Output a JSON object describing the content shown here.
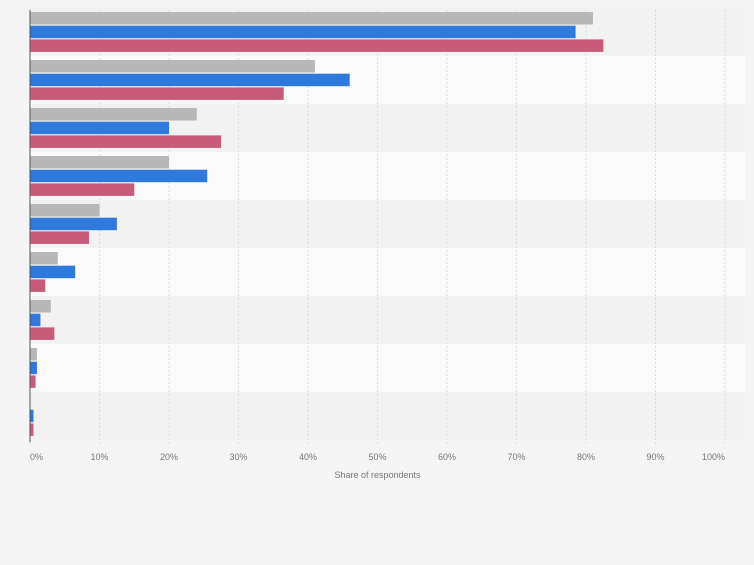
{
  "chart_data": {
    "type": "bar",
    "orientation": "horizontal",
    "categories": [
      "",
      "",
      "",
      "",
      "",
      "",
      "",
      "",
      ""
    ],
    "series": [
      {
        "color": "#b7b7b7",
        "values": [
          81,
          41,
          24,
          20,
          10,
          4,
          3,
          1,
          0
        ]
      },
      {
        "color": "#2f78dd",
        "values": [
          78.5,
          46,
          20,
          25.5,
          12.5,
          6.5,
          1.5,
          1,
          0.5
        ]
      },
      {
        "color": "#c95a7a",
        "values": [
          82.5,
          36.5,
          27.5,
          15,
          8.5,
          2.2,
          3.5,
          0.8,
          0.5
        ]
      }
    ],
    "xlabel": "Share of respondents",
    "xlim": [
      0,
      100
    ],
    "xticks": [
      "0%",
      "10%",
      "20%",
      "30%",
      "40%",
      "50%",
      "60%",
      "70%",
      "80%",
      "90%",
      "100%"
    ],
    "grid": true,
    "legend": "none"
  }
}
